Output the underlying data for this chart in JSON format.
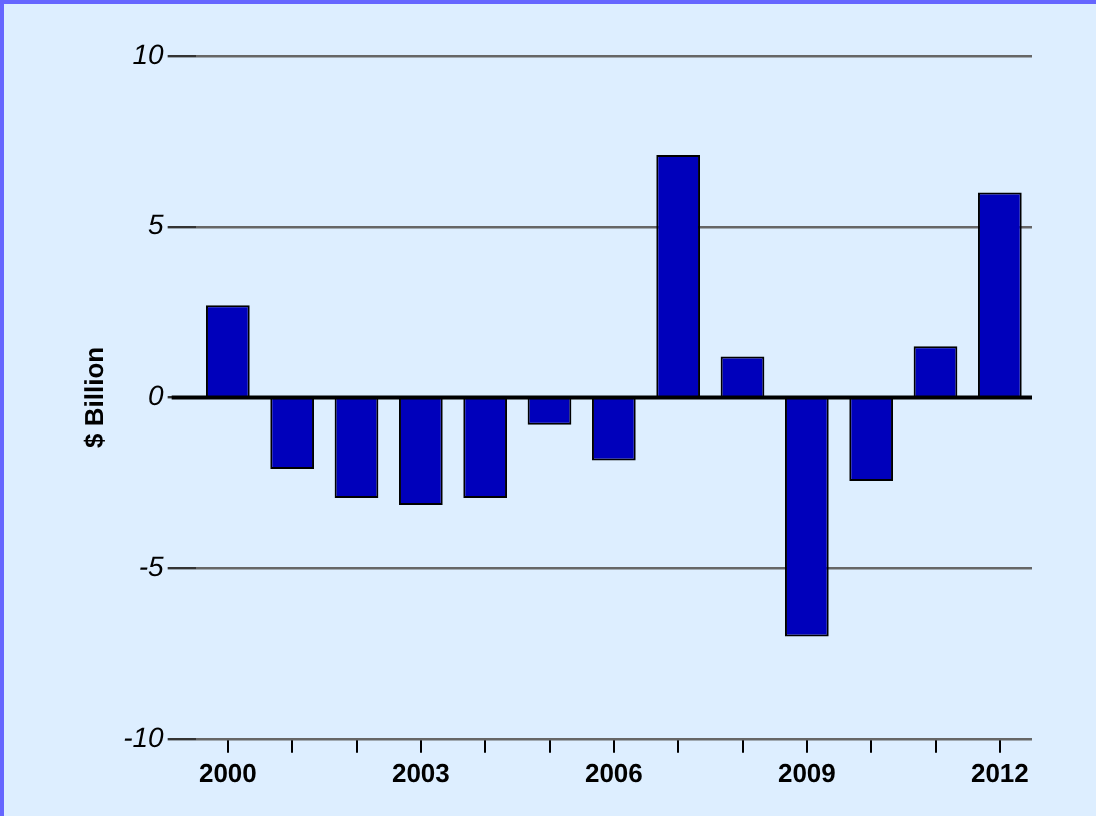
{
  "chart_data": {
    "type": "bar",
    "ylabel": "$ Billion",
    "categories": [
      "2000",
      null,
      null,
      "2003",
      null,
      null,
      "2006",
      null,
      null,
      "2009",
      null,
      null,
      "2012"
    ],
    "values": [
      2.7,
      -2.1,
      -2.95,
      -3.15,
      -2.95,
      -0.8,
      -1.85,
      7.1,
      1.2,
      -7.0,
      -2.45,
      1.5,
      6.0
    ],
    "color": "#0000bb",
    "ylim": [
      -10,
      10
    ],
    "yticks": [
      -10,
      -5,
      0,
      5,
      10
    ],
    "grid": "y"
  }
}
